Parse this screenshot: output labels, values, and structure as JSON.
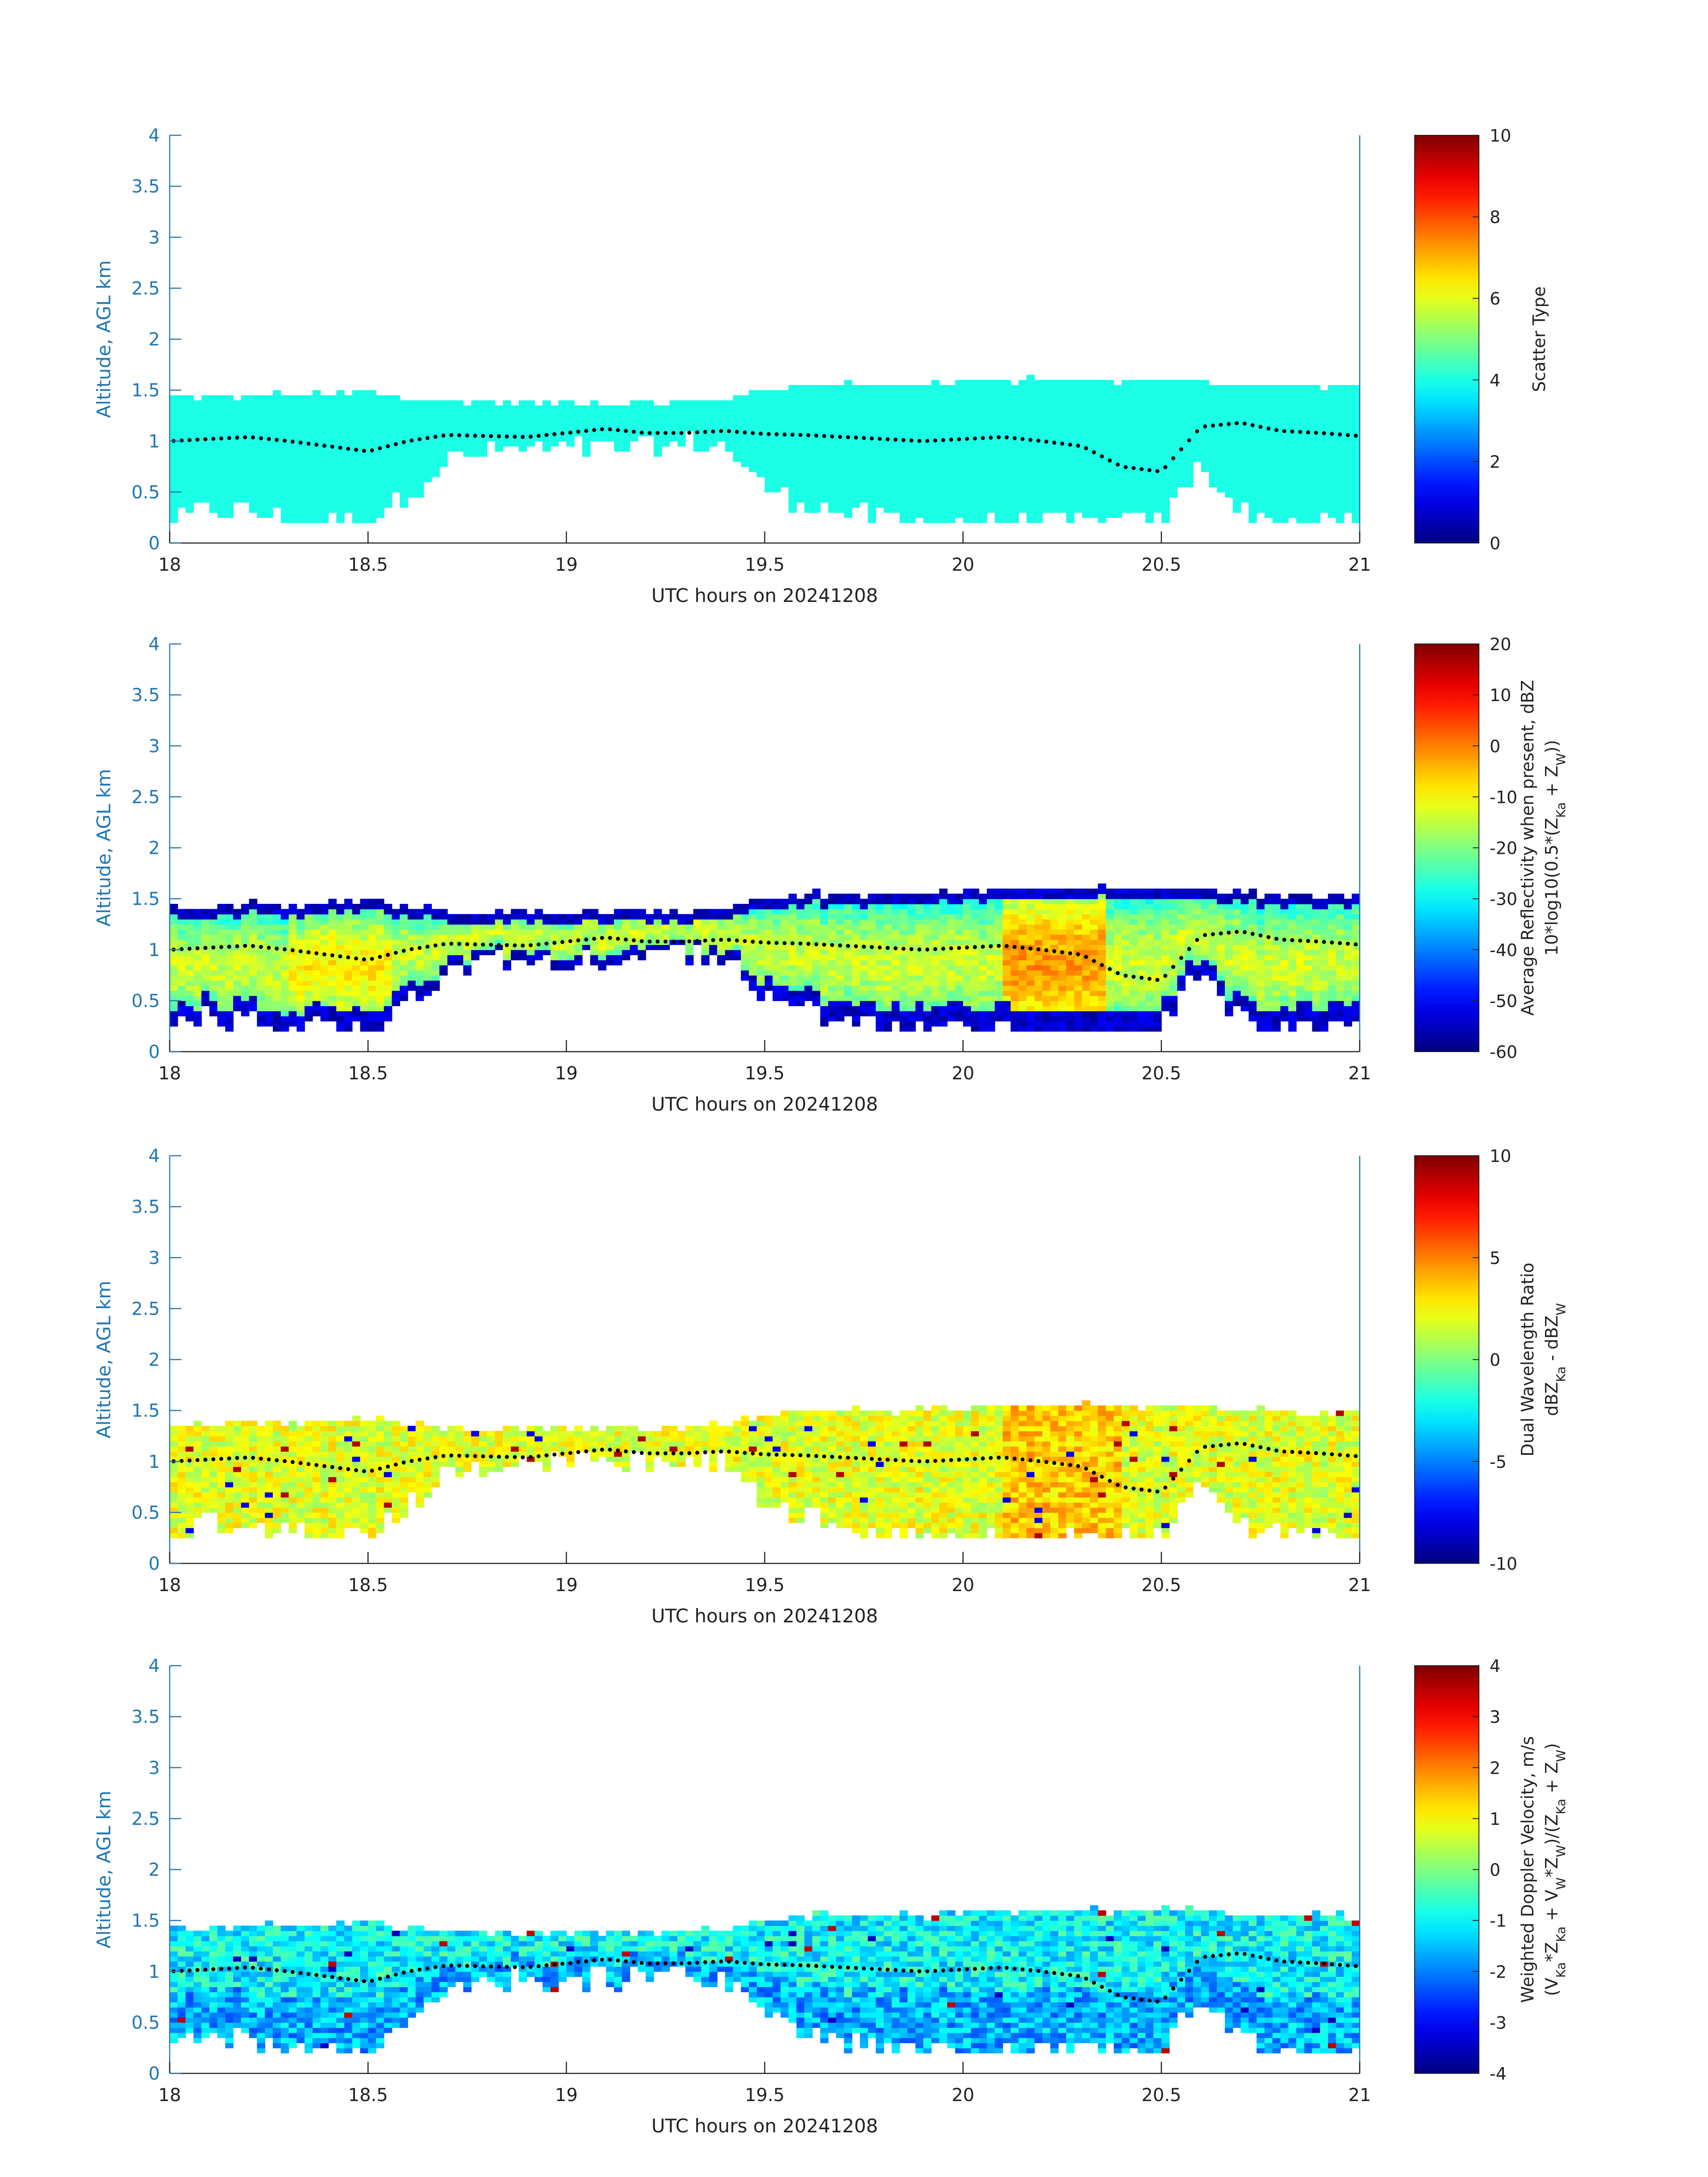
{
  "figure": {
    "shared_x_label": "UTC hours on 20241208",
    "y_label": "Altitude, AGL km",
    "layer_top_color": "#0000ff"
  },
  "chart_data": [
    {
      "type": "heatmap",
      "title": "",
      "xlabel": "UTC hours on 20241208",
      "ylabel": "Altitude, AGL km",
      "xlim": [
        18,
        21
      ],
      "ylim": [
        0,
        4
      ],
      "xticks": [
        18,
        18.5,
        19,
        19.5,
        20,
        20.5,
        21
      ],
      "yticks": [
        0,
        0.5,
        1,
        1.5,
        2,
        2.5,
        3,
        3.5,
        4
      ],
      "colorbar": {
        "label_lines": [
          "Scatter Type"
        ],
        "range": [
          0,
          10
        ],
        "ticks": [
          0,
          2,
          4,
          6,
          8,
          10
        ],
        "colormap": "jet"
      },
      "field": "scatter",
      "field_value_typical": 4
    },
    {
      "type": "heatmap",
      "title": "",
      "xlabel": "UTC hours on 20241208",
      "ylabel": "Altitude, AGL km",
      "xlim": [
        18,
        21
      ],
      "ylim": [
        0,
        4
      ],
      "xticks": [
        18,
        18.5,
        19,
        19.5,
        20,
        20.5,
        21
      ],
      "yticks": [
        0,
        0.5,
        1,
        1.5,
        2,
        2.5,
        3,
        3.5,
        4
      ],
      "colorbar": {
        "label_lines": [
          "Average Reflectivity when present, dBZ",
          "10*log10(0.5*(Z_Ka + Z_W))"
        ],
        "range": [
          -60,
          20
        ],
        "ticks": [
          -60,
          -50,
          -40,
          -30,
          -20,
          -10,
          0,
          10,
          20
        ],
        "colormap": "jet"
      },
      "field": "reflectivity"
    },
    {
      "type": "heatmap",
      "title": "",
      "xlabel": "UTC hours on 20241208",
      "ylabel": "Altitude, AGL km",
      "xlim": [
        18,
        21
      ],
      "ylim": [
        0,
        4
      ],
      "xticks": [
        18,
        18.5,
        19,
        19.5,
        20,
        20.5,
        21
      ],
      "yticks": [
        0,
        0.5,
        1,
        1.5,
        2,
        2.5,
        3,
        3.5,
        4
      ],
      "colorbar": {
        "label_lines": [
          "Dual Wavelength Ratio",
          "dBZ_Ka - dBZ_W"
        ],
        "range": [
          -10,
          10
        ],
        "ticks": [
          -10,
          -5,
          0,
          5,
          10
        ],
        "colormap": "jet"
      },
      "field": "dwr"
    },
    {
      "type": "heatmap",
      "title": "",
      "xlabel": "UTC hours on 20241208",
      "ylabel": "Altitude, AGL km",
      "xlim": [
        18,
        21
      ],
      "ylim": [
        0,
        4
      ],
      "xticks": [
        18,
        18.5,
        19,
        19.5,
        20,
        20.5,
        21
      ],
      "yticks": [
        0,
        0.5,
        1,
        1.5,
        2,
        2.5,
        3,
        3.5,
        4
      ],
      "colorbar": {
        "label_lines": [
          "Weighted Doppler Velocity, m/s",
          "(V_Ka*Z_Ka + V_W*Z_W)/(Z_Ka + Z_W)"
        ],
        "range": [
          -4,
          4
        ],
        "ticks": [
          -4,
          -3,
          -2,
          -1,
          0,
          1,
          2,
          3,
          4
        ],
        "colormap": "jet"
      },
      "field": "velocity"
    }
  ],
  "cloud_layer": {
    "time": [
      18.0,
      18.1,
      18.2,
      18.3,
      18.4,
      18.5,
      18.6,
      18.7,
      18.8,
      18.9,
      19.0,
      19.1,
      19.2,
      19.3,
      19.4,
      19.5,
      19.6,
      19.7,
      19.8,
      19.9,
      20.0,
      20.1,
      20.2,
      20.3,
      20.4,
      20.5,
      20.6,
      20.7,
      20.8,
      20.9,
      21.0
    ],
    "top_km": [
      1.42,
      1.42,
      1.45,
      1.45,
      1.45,
      1.48,
      1.42,
      1.38,
      1.38,
      1.38,
      1.38,
      1.38,
      1.38,
      1.38,
      1.42,
      1.5,
      1.55,
      1.55,
      1.55,
      1.55,
      1.58,
      1.6,
      1.6,
      1.6,
      1.6,
      1.6,
      1.6,
      1.55,
      1.55,
      1.55,
      1.55
    ],
    "base_km": [
      0.2,
      0.35,
      0.3,
      0.22,
      0.22,
      0.2,
      0.5,
      0.8,
      0.9,
      0.92,
      0.92,
      0.92,
      0.95,
      0.98,
      0.95,
      0.55,
      0.4,
      0.3,
      0.22,
      0.2,
      0.2,
      0.2,
      0.2,
      0.2,
      0.2,
      0.2,
      0.8,
      0.3,
      0.2,
      0.2,
      0.2
    ]
  },
  "melting_layer_dots": {
    "time": [
      18.0,
      18.1,
      18.2,
      18.3,
      18.4,
      18.5,
      18.6,
      18.7,
      18.8,
      18.9,
      19.0,
      19.1,
      19.2,
      19.3,
      19.4,
      19.5,
      19.6,
      19.7,
      19.8,
      19.9,
      20.0,
      20.1,
      20.2,
      20.3,
      20.4,
      20.5,
      20.6,
      20.7,
      20.8,
      20.9,
      21.0
    ],
    "altitude_km": [
      1.0,
      1.02,
      1.04,
      1.0,
      0.95,
      0.9,
      1.0,
      1.06,
      1.05,
      1.04,
      1.08,
      1.12,
      1.08,
      1.08,
      1.1,
      1.07,
      1.06,
      1.04,
      1.02,
      1.0,
      1.02,
      1.04,
      1.0,
      0.95,
      0.75,
      0.7,
      1.14,
      1.18,
      1.1,
      1.08,
      1.05
    ]
  }
}
